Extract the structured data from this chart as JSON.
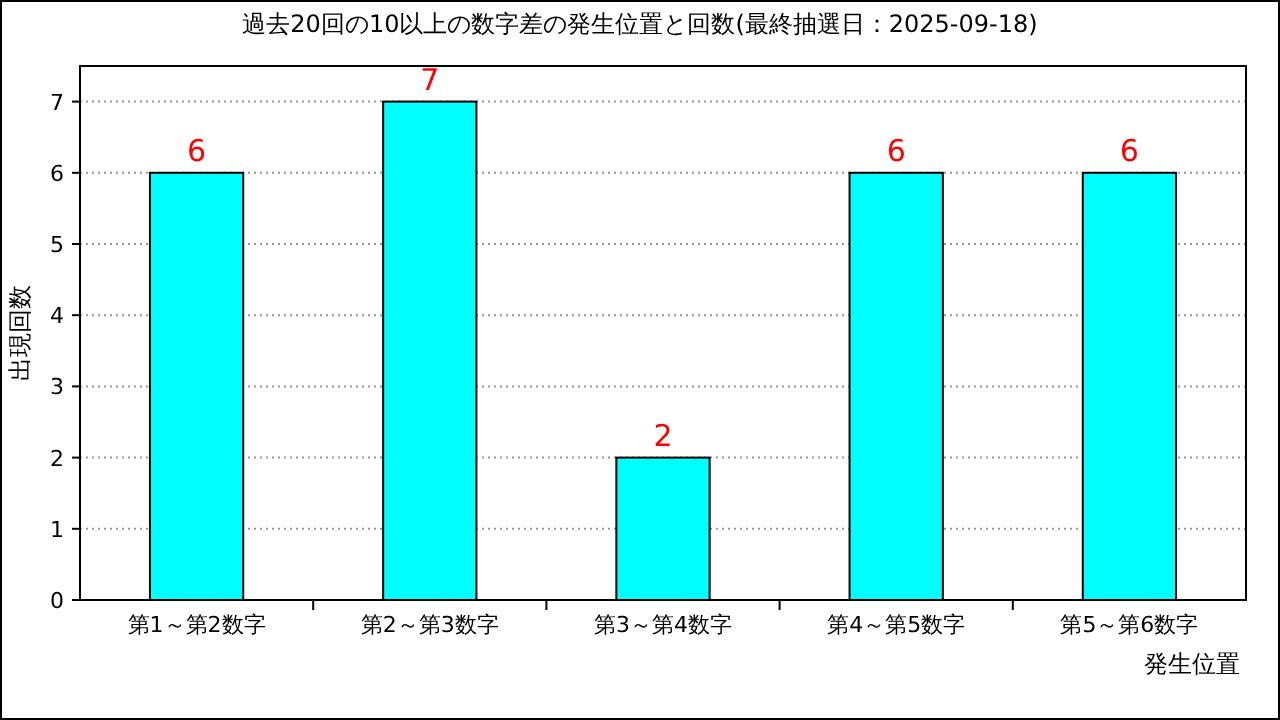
{
  "chart_data": {
    "type": "bar",
    "title": "過去20回の10以上の数字差の発生位置と回数(最終抽選日：2025-09-18)",
    "xlabel": "発生位置",
    "ylabel": "出現回数",
    "categories": [
      "第1～第2数字",
      "第2～第3数字",
      "第3～第4数字",
      "第4～第5数字",
      "第5～第6数字"
    ],
    "values": [
      6,
      7,
      2,
      6,
      6
    ],
    "color": "#00ffff",
    "ylim": [
      0,
      7.5
    ],
    "yticks": [
      0,
      1,
      2,
      3,
      4,
      5,
      6,
      7
    ],
    "grid": "y",
    "data_labels": true
  }
}
